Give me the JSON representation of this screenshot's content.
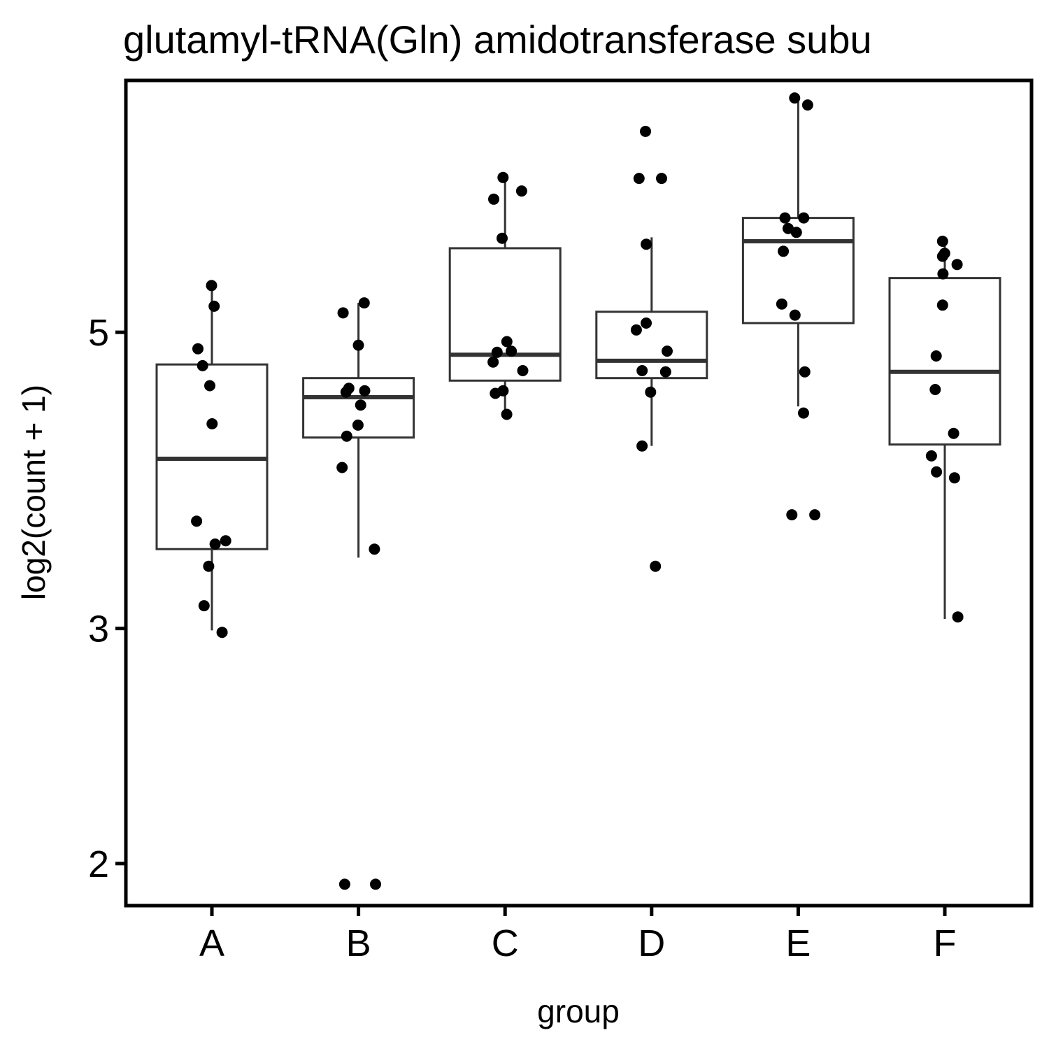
{
  "chart_data": {
    "type": "boxplot",
    "title": "glutamyl-tRNA(Gln) amidotransferase subu",
    "xlabel": "group",
    "ylabel": "log2(count + 1)",
    "y_scale": "log",
    "y_ticks": [
      2,
      3,
      5
    ],
    "ylim": [
      1.86,
      7.72
    ],
    "grid": false,
    "categories": [
      "A",
      "B",
      "C",
      "D",
      "E",
      "F"
    ],
    "boxes": [
      {
        "category": "A",
        "whisker_low": 2.99,
        "q1": 3.44,
        "median": 4.02,
        "q3": 4.73,
        "whisker_high": 5.42
      },
      {
        "category": "B",
        "whisker_low": 3.39,
        "q1": 4.17,
        "median": 4.47,
        "q3": 4.62,
        "whisker_high": 5.26
      },
      {
        "category": "C",
        "whisker_low": 4.35,
        "q1": 4.6,
        "median": 4.81,
        "q3": 5.78,
        "whisker_high": 6.53
      },
      {
        "category": "D",
        "whisker_low": 4.11,
        "q1": 4.62,
        "median": 4.76,
        "q3": 5.18,
        "whisker_high": 5.89
      },
      {
        "category": "E",
        "whisker_low": 4.4,
        "q1": 5.08,
        "median": 5.85,
        "q3": 6.09,
        "whisker_high": 7.49
      },
      {
        "category": "F",
        "whisker_low": 3.05,
        "q1": 4.12,
        "median": 4.67,
        "q3": 5.49,
        "whisker_high": 5.85
      }
    ],
    "points": [
      {
        "category": "A",
        "values": [
          5.42,
          5.23,
          4.86,
          4.72,
          4.56,
          4.27,
          3.61,
          3.49,
          3.47,
          3.34,
          3.12,
          2.98
        ]
      },
      {
        "category": "B",
        "values": [
          5.26,
          5.17,
          4.89,
          4.54,
          4.52,
          4.51,
          4.41,
          4.26,
          4.18,
          3.96,
          3.44,
          1.93,
          1.93
        ]
      },
      {
        "category": "C",
        "values": [
          6.53,
          6.38,
          6.29,
          5.88,
          4.92,
          4.84,
          4.83,
          4.75,
          4.68,
          4.52,
          4.5,
          4.34
        ]
      },
      {
        "category": "D",
        "values": [
          7.07,
          6.52,
          6.52,
          5.82,
          5.08,
          5.02,
          4.84,
          4.68,
          4.67,
          4.51,
          4.11,
          3.34
        ]
      },
      {
        "category": "E",
        "values": [
          7.49,
          7.4,
          6.09,
          6.09,
          5.98,
          5.94,
          5.75,
          5.25,
          5.15,
          4.67,
          4.35,
          3.65,
          3.65
        ]
      },
      {
        "category": "F",
        "values": [
          5.85,
          5.73,
          5.7,
          5.62,
          5.53,
          5.24,
          4.8,
          4.53,
          4.2,
          4.04,
          3.93,
          3.89,
          3.06
        ]
      }
    ],
    "colors": {
      "box_line": "#333333",
      "point": "#000000",
      "frame": "#000000"
    }
  }
}
